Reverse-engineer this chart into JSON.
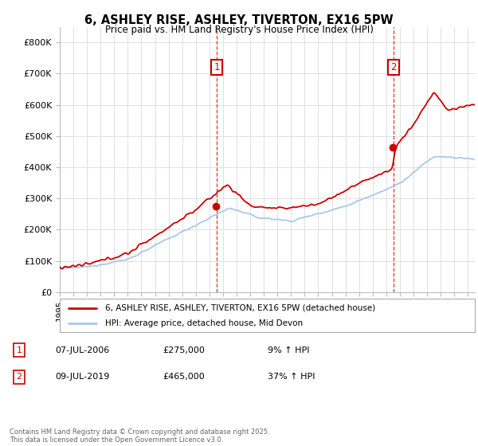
{
  "title_line1": "6, ASHLEY RISE, ASHLEY, TIVERTON, EX16 5PW",
  "title_line2": "Price paid vs. HM Land Registry's House Price Index (HPI)",
  "ylim": [
    0,
    850000
  ],
  "yticks": [
    0,
    100000,
    200000,
    300000,
    400000,
    500000,
    600000,
    700000,
    800000
  ],
  "ytick_labels": [
    "£0",
    "£100K",
    "£200K",
    "£300K",
    "£400K",
    "£500K",
    "£600K",
    "£700K",
    "£800K"
  ],
  "legend_line1": "6, ASHLEY RISE, ASHLEY, TIVERTON, EX16 5PW (detached house)",
  "legend_line2": "HPI: Average price, detached house, Mid Devon",
  "annotation1_date": "07-JUL-2006",
  "annotation1_price": "£275,000",
  "annotation1_pct": "9% ↑ HPI",
  "annotation2_date": "09-JUL-2019",
  "annotation2_price": "£465,000",
  "annotation2_pct": "37% ↑ HPI",
  "footer": "Contains HM Land Registry data © Crown copyright and database right 2025.\nThis data is licensed under the Open Government Licence v3.0.",
  "line_color_red": "#cc0000",
  "line_color_blue": "#aac8e8",
  "grid_color": "#e0e0e0",
  "sale1_t": 2006.54,
  "sale1_y": 275000,
  "sale2_t": 2019.54,
  "sale2_y": 465000,
  "xmin": 1995,
  "xmax": 2025.5
}
